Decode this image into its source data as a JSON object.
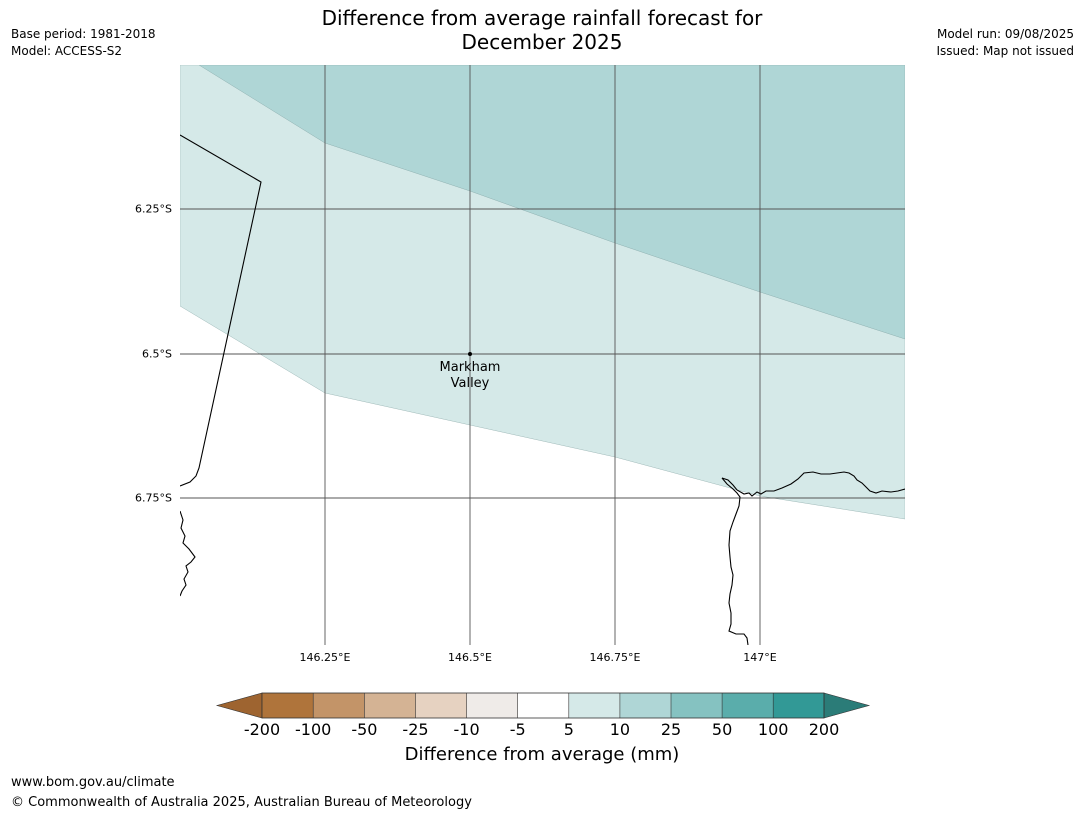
{
  "header": {
    "base_period": "Base period: 1981-2018",
    "model": "Model: ACCESS-S2",
    "model_run": "Model run: 09/08/2025",
    "issued": "Issued: Map not issued",
    "title_line1": "Difference from average rainfall forecast for",
    "title_line2": "December 2025"
  },
  "map": {
    "latitude_labels": [
      "6.25°S",
      "6.5°S",
      "6.75°S"
    ],
    "longitude_labels": [
      "146.25°E",
      "146.5°E",
      "146.75°E",
      "147°E"
    ],
    "place": {
      "name_line1": "Markham",
      "name_line2": "Valley"
    }
  },
  "colorbar": {
    "title": "Difference from average (mm)",
    "ticks": [
      "-200",
      "-100",
      "-50",
      "-25",
      "-10",
      "-5",
      "5",
      "10",
      "25",
      "50",
      "100",
      "200"
    ],
    "colors": {
      "below_minus200": "#9e6430",
      "minus200_to_minus100": "#af743b",
      "minus100_to_minus50": "#c39468",
      "minus50_to_minus25": "#d4b394",
      "minus25_to_minus10": "#e6d2c1",
      "minus10_to_minus5": "#efebe8",
      "minus5_to_5": "#ffffff",
      "5_to_10": "#d5e9e8",
      "10_to_25": "#afd6d6",
      "25_to_50": "#85c2c1",
      "50_to_100": "#5aadab",
      "100_to_200": "#329996",
      "above_200": "#2b7c78"
    }
  },
  "footer": {
    "url": "www.bom.gov.au/climate",
    "copyright": "© Commonwealth of Australia 2025, Australian Bureau of Meteorology"
  }
}
